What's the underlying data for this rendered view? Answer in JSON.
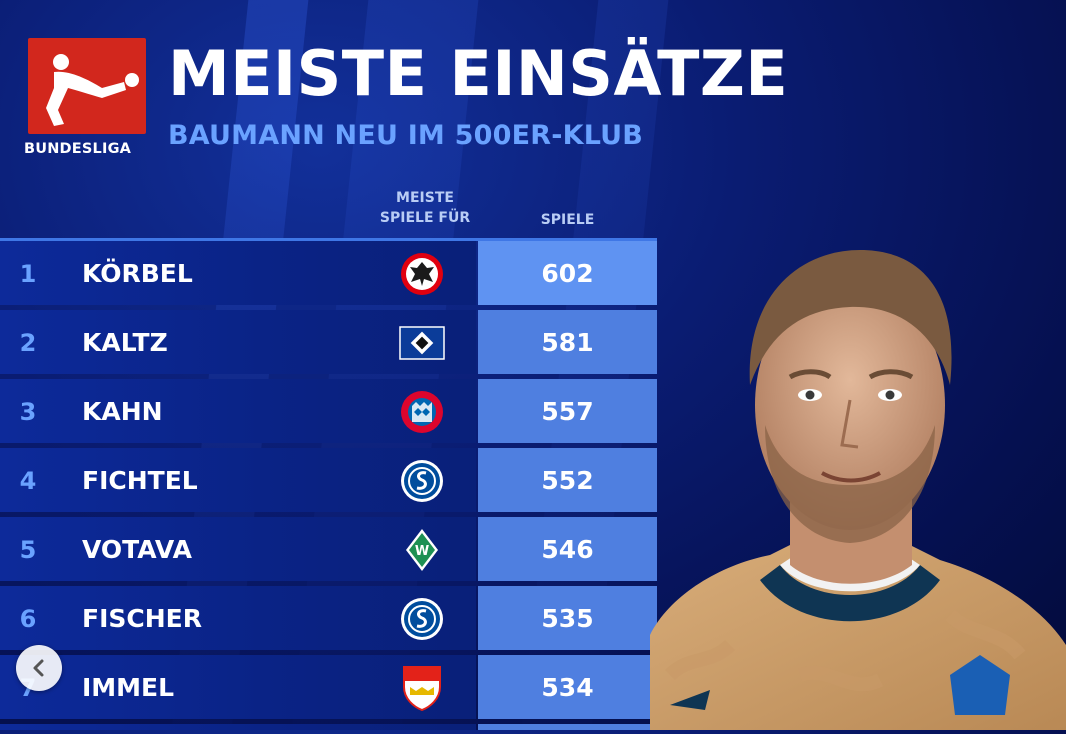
{
  "header": {
    "logo_label": "BUNDESLIGA",
    "title": "MEISTE EINSÄTZE",
    "subtitle": "BAUMANN NEU IM 500ER-KLUB"
  },
  "table": {
    "col_club_header": "MEISTE SPIELE FÜR",
    "col_games_header": "SPIELE",
    "rows": [
      {
        "rank": "1",
        "name": "KÖRBEL",
        "club_icon": "eintracht-frankfurt-crest",
        "games": "602"
      },
      {
        "rank": "2",
        "name": "KALTZ",
        "club_icon": "hamburger-sv-crest",
        "games": "581"
      },
      {
        "rank": "3",
        "name": "KAHN",
        "club_icon": "bayern-muenchen-crest",
        "games": "557"
      },
      {
        "rank": "4",
        "name": "FICHTEL",
        "club_icon": "schalke-04-crest",
        "games": "552"
      },
      {
        "rank": "5",
        "name": "VOTAVA",
        "club_icon": "werder-bremen-crest",
        "games": "546"
      },
      {
        "rank": "6",
        "name": "FISCHER",
        "club_icon": "schalke-04-crest",
        "games": "535"
      },
      {
        "rank": "7",
        "name": "IMMEL",
        "club_icon": "vfb-stuttgart-crest",
        "games": "534"
      }
    ]
  },
  "colors": {
    "accent_blue": "#6aa2ff",
    "value_cell": "#4f7fe0",
    "logo_red": "#d2271d"
  },
  "icons": {
    "back": "chevron-left-icon",
    "player": "player-photo",
    "logo": "bundesliga-logo"
  }
}
